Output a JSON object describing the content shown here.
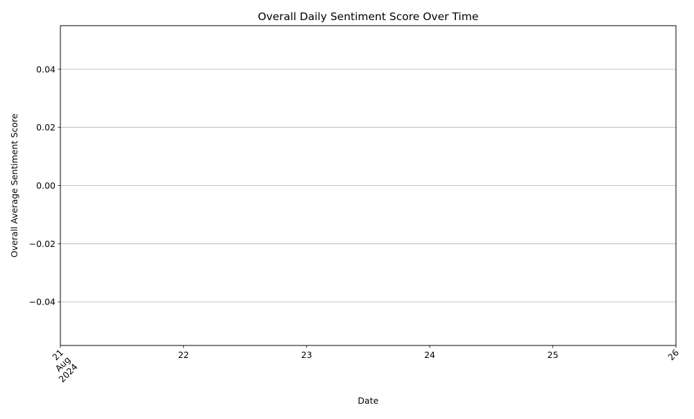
{
  "chart_data": {
    "type": "line",
    "title": "Overall Daily Sentiment Score Over Time",
    "xlabel": "Date",
    "ylabel": "Overall Average Sentiment Score",
    "x_axis": {
      "scale": "date",
      "range": [
        "2024-08-21",
        "2024-08-26"
      ],
      "ticks": [
        {
          "value": "2024-08-21",
          "lines": [
            "21",
            "Aug",
            "2024"
          ]
        },
        {
          "value": "2024-08-22",
          "lines": [
            "22"
          ]
        },
        {
          "value": "2024-08-23",
          "lines": [
            "23"
          ]
        },
        {
          "value": "2024-08-24",
          "lines": [
            "24"
          ]
        },
        {
          "value": "2024-08-25",
          "lines": [
            "25"
          ]
        },
        {
          "value": "2024-08-26",
          "lines": [
            "26"
          ]
        }
      ]
    },
    "y_axis": {
      "range": [
        -0.055,
        0.055
      ],
      "ticks": [
        {
          "value": -0.04,
          "label": "−0.04"
        },
        {
          "value": -0.02,
          "label": "−0.02"
        },
        {
          "value": 0.0,
          "label": "0.00"
        },
        {
          "value": 0.02,
          "label": "0.02"
        },
        {
          "value": 0.04,
          "label": "0.04"
        }
      ]
    },
    "grid": {
      "x": false,
      "y": true
    },
    "series": [
      {
        "x": [],
        "y": []
      }
    ],
    "colors": {
      "axis": "#000000",
      "grid": "#b0b0b0",
      "line": "#1f77b4"
    }
  }
}
